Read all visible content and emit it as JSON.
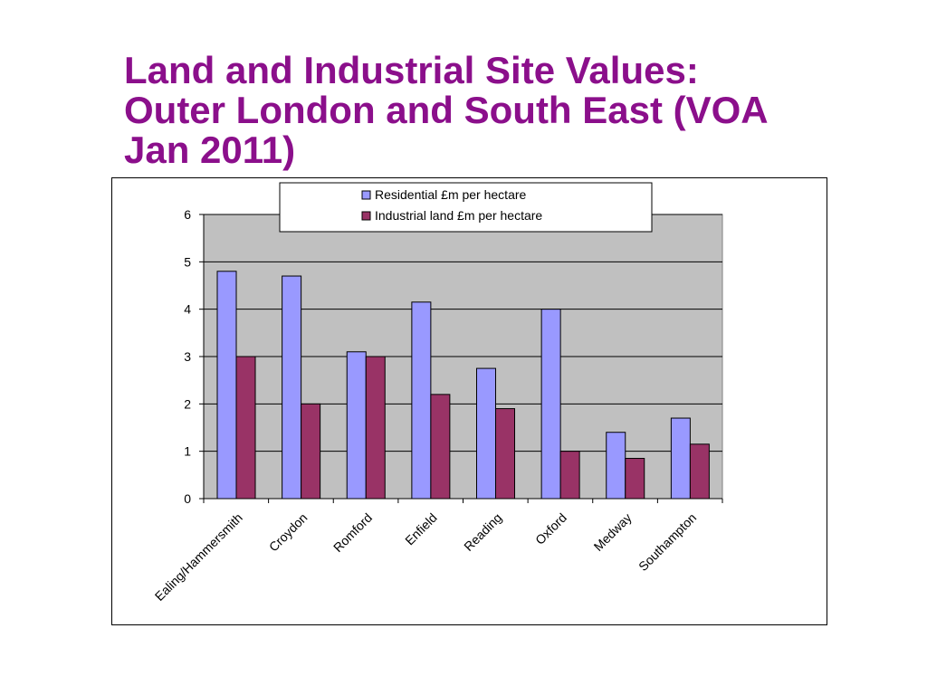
{
  "slide": {
    "title_lines": [
      "Land and Industrial Site Values:",
      "Outer London and South East (VOA",
      "Jan 2011)"
    ]
  },
  "colors": {
    "title": "#8B0F8B",
    "plot_background": "#C0C0C0",
    "residential": "#9999FF",
    "industrial": "#993366"
  },
  "chart_data": {
    "type": "bar",
    "title": "",
    "xlabel": "",
    "ylabel": "",
    "ylim": [
      0,
      6
    ],
    "yticks": [
      0,
      1,
      2,
      3,
      4,
      5,
      6
    ],
    "grid": true,
    "legend_position": "top",
    "categories": [
      "Ealing/Hammersmith",
      "Croydon",
      "Romford",
      "Enfield",
      "Reading",
      "Oxford",
      "Medway",
      "Southampton"
    ],
    "series": [
      {
        "name": "Residential £m per hectare",
        "color": "#9999FF",
        "values": [
          4.8,
          4.7,
          3.1,
          4.15,
          2.75,
          4.0,
          1.4,
          1.7
        ]
      },
      {
        "name": "Industrial land £m per hectare",
        "color": "#993366",
        "values": [
          3.0,
          2.0,
          3.0,
          2.2,
          1.9,
          1.0,
          0.85,
          1.15
        ]
      }
    ]
  }
}
